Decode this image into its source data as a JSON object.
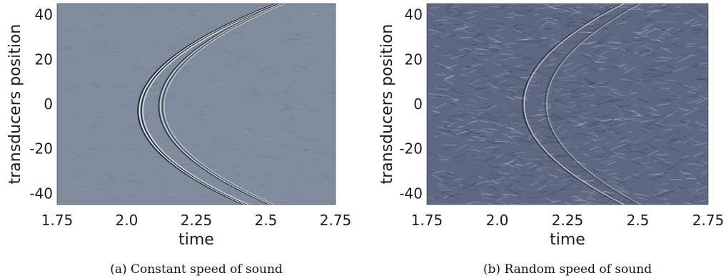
{
  "chart_data": [
    {
      "type": "heatmap",
      "id": "a",
      "caption": "(a)  Constant speed of sound",
      "xlabel": "time",
      "ylabel": "transducers position",
      "xlim": [
        1.75,
        2.75
      ],
      "ylim": [
        -45,
        45
      ],
      "x_ticks": [
        1.75,
        2.0,
        2.25,
        2.5,
        2.75
      ],
      "x_tick_labels": [
        "1.75",
        "2.0",
        "2.25",
        "2.5",
        "2.75"
      ],
      "y_ticks": [
        40,
        20,
        0,
        -20,
        -40
      ],
      "y_tick_labels": [
        "40",
        "20",
        "0",
        "-20",
        "-40"
      ],
      "background_color": "#7e8c9d",
      "noise_level": 0.15,
      "wavefronts": [
        {
          "t0": 2.04,
          "curvature": 0.000215,
          "shift": -3,
          "strength": 1.0
        },
        {
          "t0": 2.052,
          "curvature": 0.000215,
          "shift": -3,
          "strength": 0.85
        },
        {
          "t0": 2.115,
          "curvature": 0.000205,
          "shift": -1,
          "strength": 0.8
        },
        {
          "t0": 2.128,
          "curvature": 0.000205,
          "shift": -1,
          "strength": 0.55
        }
      ]
    },
    {
      "type": "heatmap",
      "id": "b",
      "caption": "(b)  Random speed of sound",
      "xlabel": "time",
      "ylabel": "transducers position",
      "xlim": [
        1.75,
        2.75
      ],
      "ylim": [
        -45,
        45
      ],
      "x_ticks": [
        1.75,
        2.0,
        2.25,
        2.5,
        2.75
      ],
      "x_tick_labels": [
        "1.75",
        "2.0",
        "2.25",
        "2.5",
        "2.75"
      ],
      "y_ticks": [
        40,
        20,
        0,
        -20,
        -40
      ],
      "y_tick_labels": [
        "40",
        "20",
        "0",
        "-20",
        "-40"
      ],
      "background_color": "#5e6883",
      "noise_level": 0.9,
      "wavefronts": [
        {
          "t0": 2.09,
          "curvature": 0.000175,
          "shift": 0,
          "strength": 0.7
        },
        {
          "t0": 2.17,
          "curvature": 0.000165,
          "shift": 0,
          "strength": 0.45
        }
      ]
    }
  ]
}
